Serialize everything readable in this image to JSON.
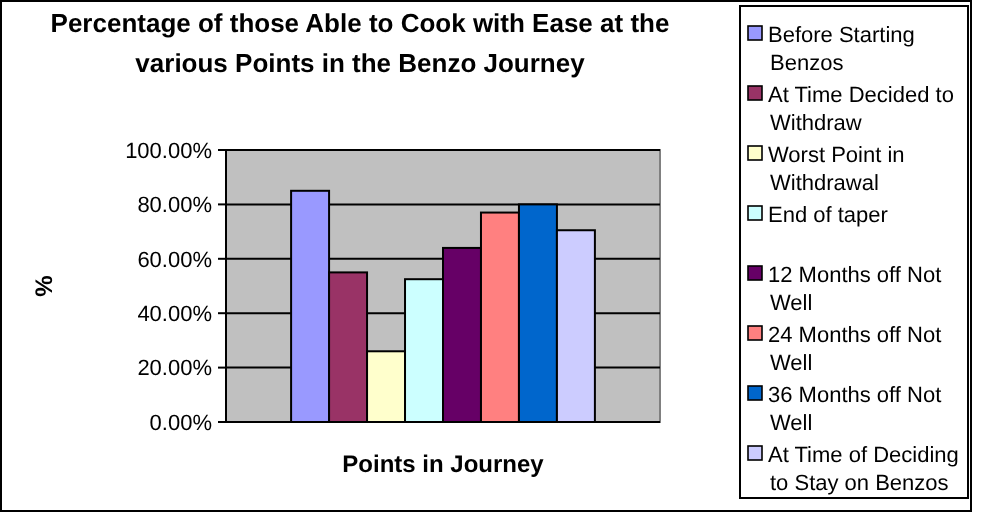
{
  "chart_data": {
    "type": "bar",
    "title": "Percentage of those Able to Cook with Ease at the various Points in the Benzo Journey",
    "xlabel": "Points in Journey",
    "ylabel": "%",
    "categories": [
      null
    ],
    "series": [
      {
        "name": "Before Starting Benzos",
        "color": "#9999ff",
        "values": [
          85
        ]
      },
      {
        "name": "At Time Decided to Withdraw",
        "color": "#993366",
        "values": [
          55
        ]
      },
      {
        "name": "Worst Point in Withdrawal",
        "color": "#ffffcc",
        "values": [
          26
        ]
      },
      {
        "name": "End of taper",
        "color": "#ccffff",
        "values": [
          52.5
        ]
      },
      {
        "name": "12 Months off Not Well",
        "color": "#660066",
        "values": [
          64
        ]
      },
      {
        "name": "24 Months off Not Well",
        "color": "#ff8080",
        "values": [
          77
        ]
      },
      {
        "name": "36 Months off Not Well",
        "color": "#0066cc",
        "values": [
          80
        ]
      },
      {
        "name": "At Time of Deciding to Stay on Benzos",
        "color": "#ccccff",
        "values": [
          70.5
        ]
      }
    ],
    "ylim": [
      0,
      100
    ],
    "yticks": [
      {
        "value": 0,
        "label": "0.00%"
      },
      {
        "value": 20,
        "label": "20.00%"
      },
      {
        "value": 40,
        "label": "40.00%"
      },
      {
        "value": 60,
        "label": "60.00%"
      },
      {
        "value": 80,
        "label": "80.00%"
      },
      {
        "value": 100,
        "label": "100.00%"
      }
    ],
    "grid": "y",
    "legend": "right"
  }
}
